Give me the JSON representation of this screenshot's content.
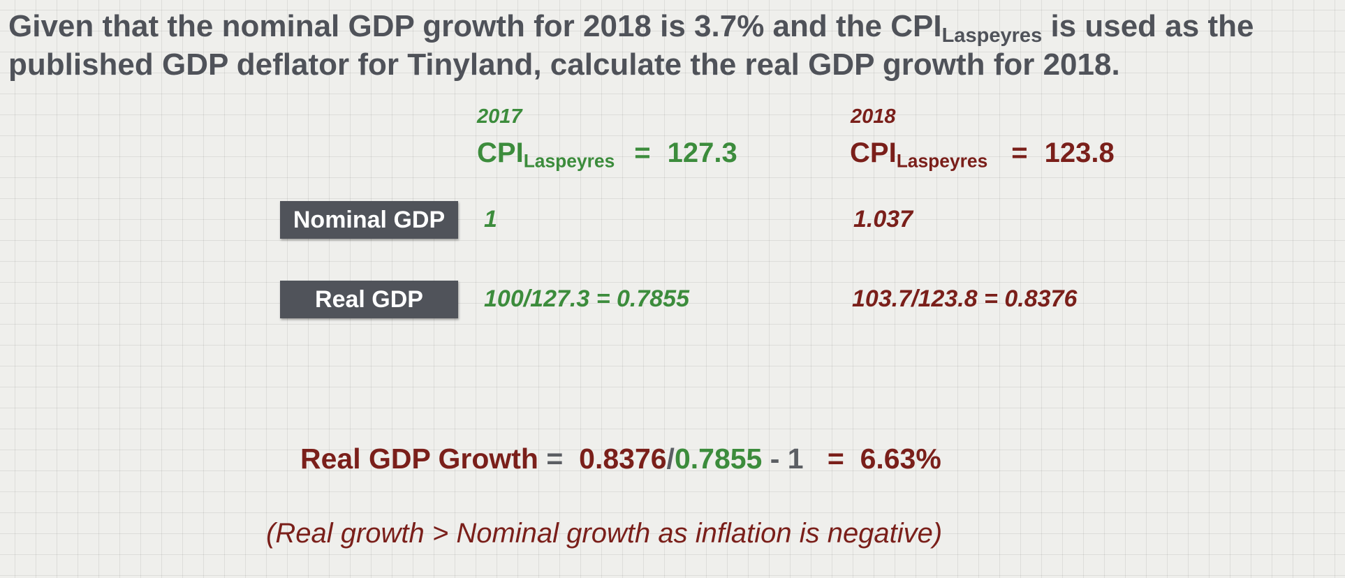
{
  "question": {
    "part1": "Given that the nominal GDP growth for 2018 is 3.7% and the CPI",
    "subscript": "Laspeyres",
    "part2": " is used as the published GDP deflator for Tinyland, calculate the real GDP growth for 2018."
  },
  "columns": [
    {
      "year": "2017",
      "cpi_label": "CPI",
      "cpi_subscript": "Laspeyres",
      "equals": "=",
      "cpi_value": "127.3",
      "nominal_gdp": "1",
      "real_gdp": "100/127.3 = 0.7855"
    },
    {
      "year": "2018",
      "cpi_label": "CPI",
      "cpi_subscript": "Laspeyres",
      "equals": "=",
      "cpi_value": "123.8",
      "nominal_gdp": "1.037",
      "real_gdp": "103.7/123.8 = 0.8376"
    }
  ],
  "row_labels": {
    "nominal": "Nominal GDP",
    "real": "Real GDP"
  },
  "result": {
    "label": "Real GDP Growth",
    "eq1": "=",
    "numerator": "0.8376",
    "slash": "/",
    "denominator": "0.7855",
    "minus_one": "- 1",
    "eq2": "=",
    "answer": "6.63%"
  },
  "note": "(Real growth > Nominal growth as inflation is negative)",
  "colors": {
    "green_2017": "#3c8c3c",
    "red_2018": "#7a1f1a",
    "heading_grey": "#4f5259",
    "label_box": "#50535a"
  }
}
